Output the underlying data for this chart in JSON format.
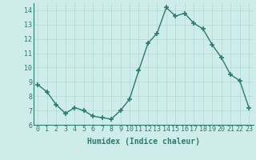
{
  "x": [
    0,
    1,
    2,
    3,
    4,
    5,
    6,
    7,
    8,
    9,
    10,
    11,
    12,
    13,
    14,
    15,
    16,
    17,
    18,
    19,
    20,
    21,
    22,
    23
  ],
  "y": [
    8.8,
    8.3,
    7.4,
    6.8,
    7.2,
    7.0,
    6.6,
    6.5,
    6.4,
    7.0,
    7.8,
    9.8,
    11.7,
    12.4,
    14.2,
    13.6,
    13.8,
    13.1,
    12.7,
    11.6,
    10.7,
    9.5,
    9.1,
    7.2
  ],
  "xlim": [
    -0.5,
    23.5
  ],
  "ylim": [
    6,
    14.5
  ],
  "yticks": [
    6,
    7,
    8,
    9,
    10,
    11,
    12,
    13,
    14
  ],
  "xticks": [
    0,
    1,
    2,
    3,
    4,
    5,
    6,
    7,
    8,
    9,
    10,
    11,
    12,
    13,
    14,
    15,
    16,
    17,
    18,
    19,
    20,
    21,
    22,
    23
  ],
  "xlabel": "Humidex (Indice chaleur)",
  "line_color": "#2d7a6e",
  "bg_color": "#ceecea",
  "grid_color": "#b0d9d5",
  "tick_color": "#2d7a6e",
  "label_color": "#2d7a6e",
  "marker": "+",
  "markersize": 4,
  "linewidth": 1.0,
  "xlabel_fontsize": 7,
  "tick_fontsize": 6
}
